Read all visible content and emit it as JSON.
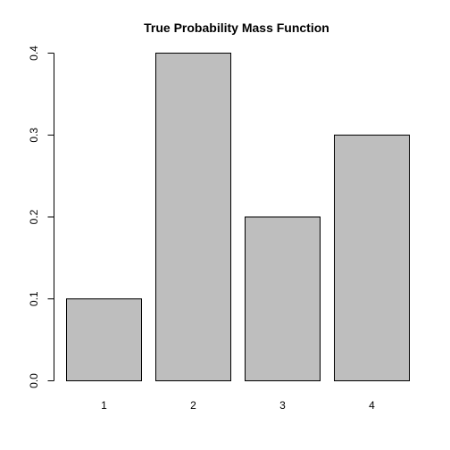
{
  "chart_data": {
    "type": "bar",
    "title": "True Probability Mass Function",
    "categories": [
      "1",
      "2",
      "3",
      "4"
    ],
    "values": [
      0.1,
      0.4,
      0.2,
      0.3
    ],
    "xlabel": "",
    "ylabel": "",
    "ylim": [
      0,
      0.4
    ],
    "yticks": [
      0.0,
      0.1,
      0.2,
      0.3,
      0.4
    ],
    "ytick_labels": [
      "0.0",
      "0.1",
      "0.2",
      "0.3",
      "0.4"
    ],
    "grid": false,
    "legend": "none",
    "colors": {
      "bar_fill": "#bebebe",
      "bar_stroke": "#000000",
      "axis": "#000000",
      "background": "#ffffff"
    }
  }
}
